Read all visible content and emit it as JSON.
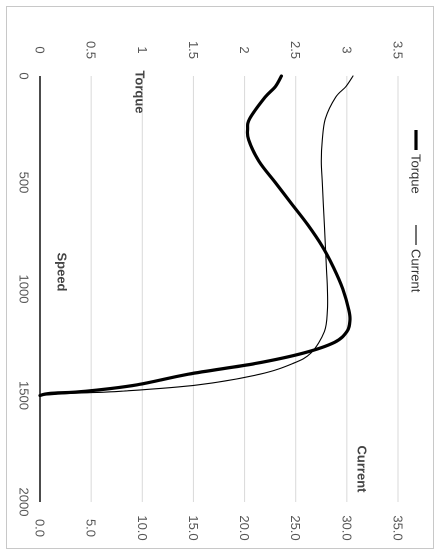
{
  "chart_data": {
    "type": "line",
    "orientation": "rotated-90-clockwise",
    "x_axis": {
      "label": "Speed",
      "range": [
        0,
        2000
      ],
      "ticks": [
        "0",
        "500",
        "1000",
        "1500",
        "2000"
      ]
    },
    "y_axis_left": {
      "label": "Torque",
      "range": [
        0,
        3.5
      ],
      "ticks": [
        "0",
        "0.5",
        "1",
        "1.5",
        "2",
        "2.5",
        "3",
        "3.5"
      ]
    },
    "y_axis_right": {
      "label": "Current",
      "range": [
        0,
        35
      ],
      "ticks": [
        "0.0",
        "5.0",
        "10.0",
        "15.0",
        "20.0",
        "25.0",
        "30.0",
        "35.0"
      ]
    },
    "series": [
      {
        "name": "Torque",
        "axis": "left",
        "color": "#000000",
        "style": "thick",
        "x": [
          0,
          50,
          100,
          200,
          250,
          300,
          400,
          500,
          600,
          700,
          800,
          900,
          1000,
          1100,
          1150,
          1200,
          1250,
          1300,
          1350,
          1400,
          1450,
          1480,
          1490,
          1500
        ],
        "y": [
          2.36,
          2.3,
          2.2,
          2.05,
          2.03,
          2.04,
          2.14,
          2.3,
          2.46,
          2.62,
          2.76,
          2.87,
          2.96,
          3.02,
          3.03,
          3.0,
          2.88,
          2.58,
          2.1,
          1.45,
          0.95,
          0.45,
          0.1,
          0.0
        ]
      },
      {
        "name": "Current",
        "axis": "right",
        "color": "#000000",
        "style": "thin",
        "x": [
          0,
          50,
          100,
          200,
          300,
          400,
          500,
          600,
          700,
          800,
          900,
          1000,
          1100,
          1200,
          1300,
          1350,
          1400,
          1450,
          1480,
          1490,
          1500
        ],
        "y": [
          30.6,
          29.9,
          28.9,
          27.9,
          27.6,
          27.5,
          27.6,
          27.7,
          27.8,
          27.9,
          28.0,
          28.1,
          28.1,
          27.8,
          26.5,
          24.7,
          21.5,
          15.5,
          8.0,
          3.0,
          0.0
        ]
      }
    ],
    "legend": {
      "position": "right",
      "entries": [
        "Torque",
        "Current"
      ]
    }
  }
}
